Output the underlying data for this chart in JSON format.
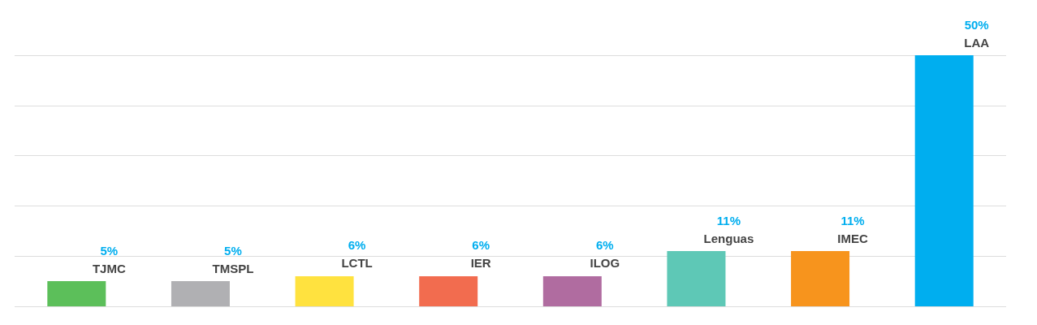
{
  "chart_data": {
    "type": "bar",
    "categories": [
      "TJMC",
      "TMSPL",
      "LCTL",
      "IER",
      "ILOG",
      "Lenguas",
      "IMEC",
      "LAA"
    ],
    "values": [
      5,
      5,
      6,
      6,
      6,
      11,
      11,
      50
    ],
    "value_labels": [
      "5%",
      "5%",
      "6%",
      "6%",
      "6%",
      "11%",
      "11%",
      "50%"
    ],
    "colors": [
      "#5cbf5a",
      "#b0b0b3",
      "#ffe23f",
      "#f26c4f",
      "#b06ca0",
      "#5ec8b6",
      "#f7941d",
      "#00aeef"
    ],
    "grid": "y",
    "tick_labels": false
  }
}
